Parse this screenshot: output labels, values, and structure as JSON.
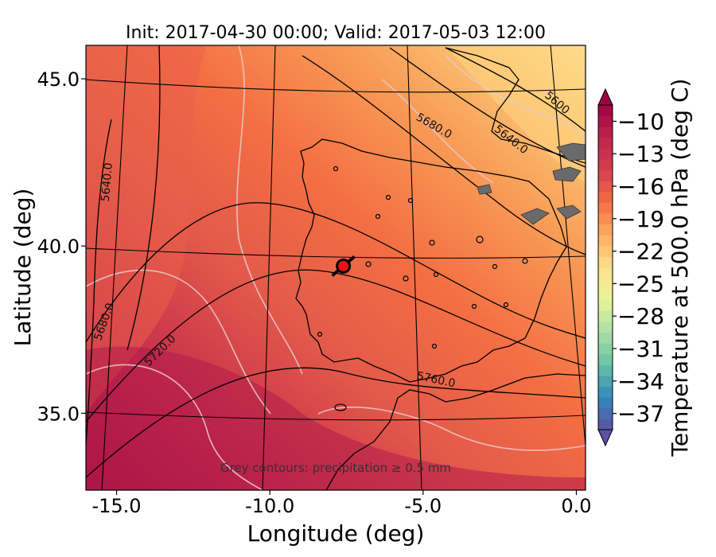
{
  "chart_data": {
    "type": "heatmap",
    "title": "Init: 2017-04-30 00:00; Valid: 2017-05-03 12:00",
    "xlabel": "Longitude (deg)",
    "ylabel": "Latitude (deg)",
    "xlim": [
      -16.0,
      0.3
    ],
    "ylim": [
      32.7,
      46.0
    ],
    "xticks": [
      "-15.0",
      "-10.0",
      "-5.0",
      "0.0"
    ],
    "xtick_values": [
      -15.0,
      -10.0,
      -5.0,
      0.0
    ],
    "yticks": [
      "35.0",
      "40.0",
      "45.0"
    ],
    "ytick_values": [
      35.0,
      40.0,
      45.0
    ],
    "colorbar": {
      "label": "Temperature at 500.0 hPa (deg C)",
      "min": -38.5,
      "max": -8.5,
      "ticks": [
        "−10",
        "−13",
        "−16",
        "−19",
        "−22",
        "−25",
        "−28",
        "−31",
        "−34",
        "−37"
      ],
      "tick_values": [
        -10,
        -13,
        -16,
        -19,
        -22,
        -25,
        -28,
        -31,
        -34,
        -37
      ],
      "extend": "both"
    },
    "height_contours": [
      {
        "label": "5600",
        "value": 5600
      },
      {
        "label": "5640.0",
        "value": 5640
      },
      {
        "label": "5680.0",
        "value": 5680
      },
      {
        "label": "5720.0",
        "value": 5720
      },
      {
        "label": "5760.0",
        "value": 5760
      }
    ],
    "height_contour_labels": [
      {
        "text": "5600",
        "lon": -0.7,
        "lat": 44.2,
        "rotate": 40
      },
      {
        "text": "5640.0",
        "lon": -2.2,
        "lat": 43.1,
        "rotate": 38
      },
      {
        "text": "5680.0",
        "lon": -4.7,
        "lat": 43.5,
        "rotate": 30
      },
      {
        "text": "5640.0",
        "lon": -15.2,
        "lat": 41.9,
        "rotate": -85
      },
      {
        "text": "5680.0",
        "lon": -15.3,
        "lat": 37.7,
        "rotate": -70
      },
      {
        "text": "5720.0",
        "lon": -13.5,
        "lat": 36.8,
        "rotate": -45
      },
      {
        "text": "5760.0",
        "lon": -4.6,
        "lat": 35.9,
        "rotate": 12
      }
    ],
    "marker": {
      "lon": -7.6,
      "lat": 39.4,
      "color": "#ee1111"
    },
    "annotation": "Grey contours: precipitation ≥ 0.5 mm"
  }
}
